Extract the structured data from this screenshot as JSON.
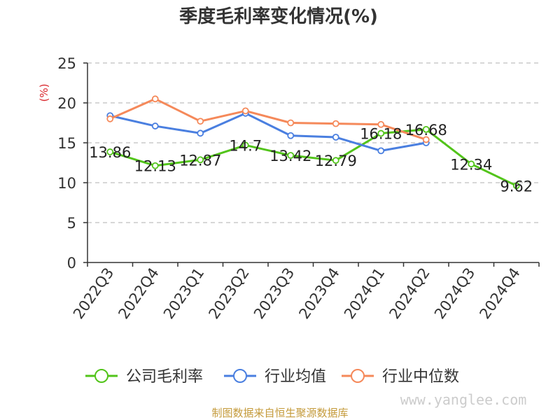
{
  "chart_data": {
    "type": "line",
    "title": "季度毛利率变化情况(%)",
    "ylabel": "(%)",
    "xlabel": "",
    "ylim": [
      0,
      25
    ],
    "yticks": [
      0,
      5,
      10,
      15,
      20,
      25
    ],
    "grid": true,
    "legend_position": "bottom",
    "categories": [
      "2022Q3",
      "2022Q4",
      "2023Q1",
      "2023Q2",
      "2023Q3",
      "2023Q4",
      "2024Q1",
      "2024Q2",
      "2024Q3",
      "2024Q4"
    ],
    "series": [
      {
        "name": "公司毛利率",
        "color": "#52c41a",
        "values": [
          13.86,
          12.13,
          12.87,
          14.7,
          13.42,
          12.79,
          16.18,
          16.68,
          12.34,
          9.62
        ],
        "labels": [
          "13.86",
          "12.13",
          "12.87",
          "14.7",
          "13.42",
          "12.79",
          "16.18",
          "16.68",
          "12.34",
          "9.62"
        ]
      },
      {
        "name": "行业均值",
        "color": "#4a7fe0",
        "values": [
          18.4,
          17.1,
          16.2,
          18.7,
          15.9,
          15.7,
          14.0,
          15.0,
          null,
          null
        ]
      },
      {
        "name": "行业中位数",
        "color": "#f5895a",
        "values": [
          18.0,
          20.5,
          17.7,
          19.0,
          17.5,
          17.4,
          17.3,
          15.4,
          null,
          null
        ]
      }
    ]
  },
  "footer": {
    "source": "制图数据来自恒生聚源数据库",
    "watermark": "www.yanglee.com"
  }
}
